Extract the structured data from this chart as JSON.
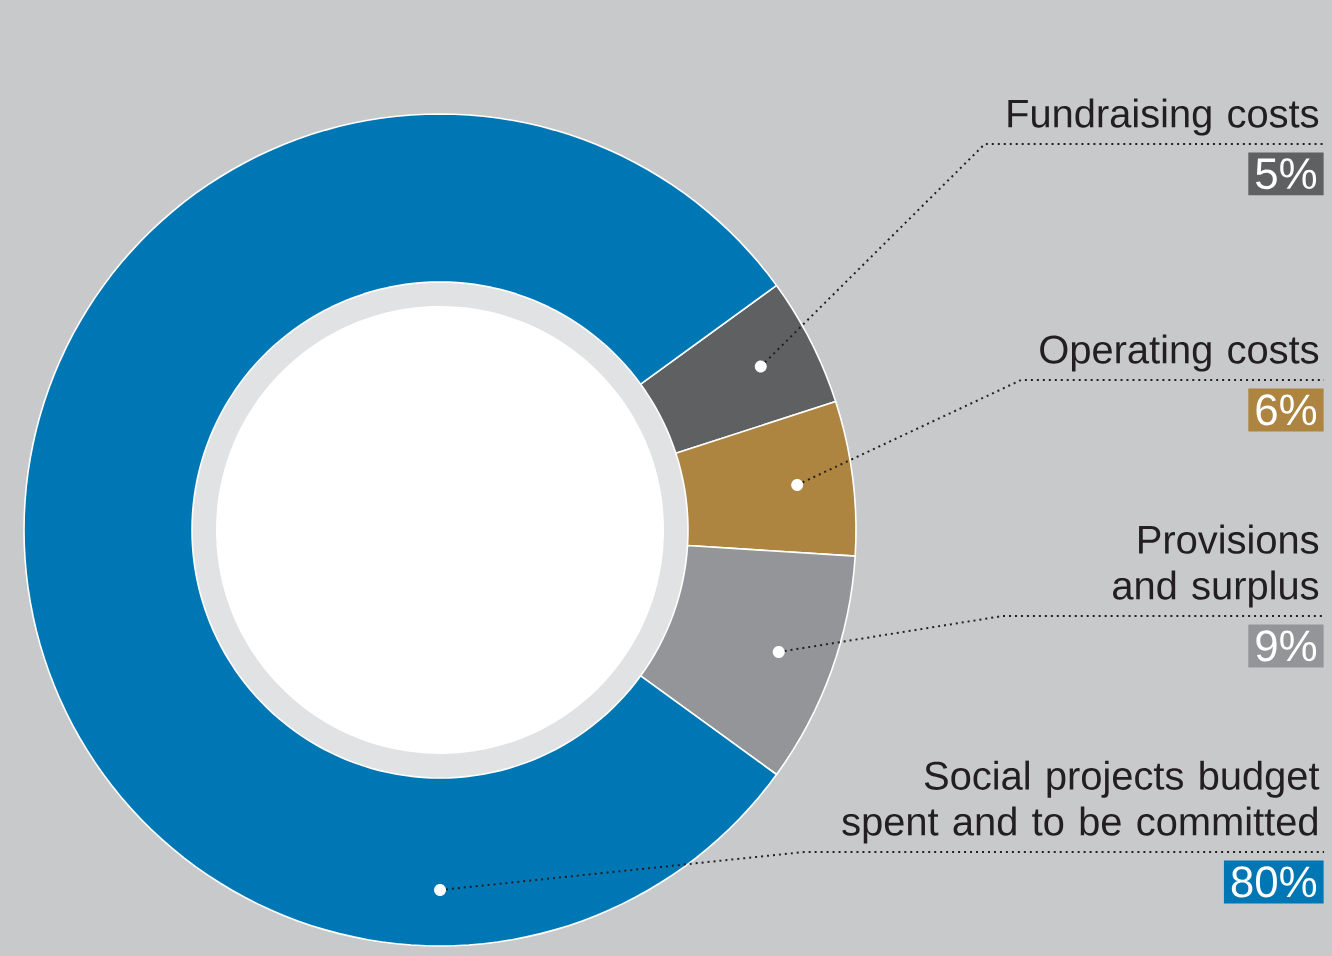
{
  "chart_data": {
    "type": "donut",
    "categories": [
      "Fundraising costs",
      "Operating costs",
      "Provisions and surplus",
      "Social projects budget spent and to be committed"
    ],
    "values": [
      5,
      6,
      9,
      80
    ],
    "colors": [
      "#5f6062",
      "#ad8540",
      "#939598",
      "#0077b5"
    ],
    "value_labels": [
      "5%",
      "6%",
      "9%",
      "80%"
    ]
  }
}
